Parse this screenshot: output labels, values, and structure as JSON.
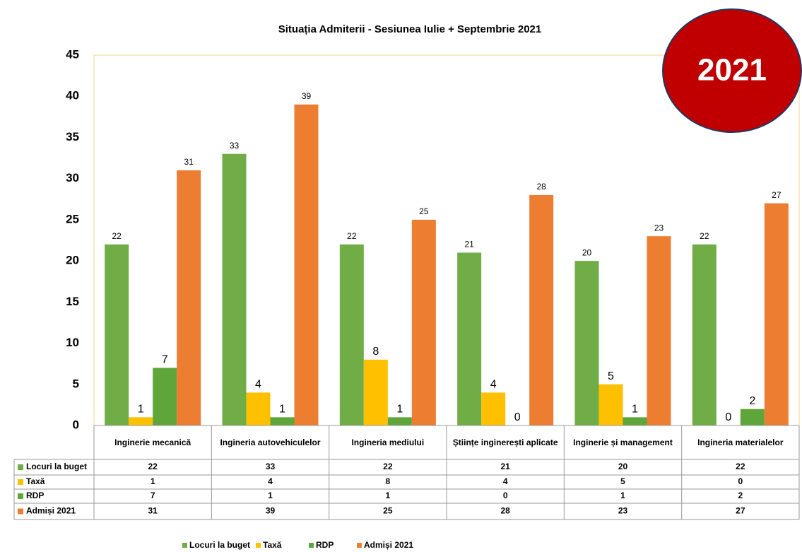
{
  "chart_data": {
    "type": "bar",
    "title": "Situația Admiterii - Sesiunea Iulie + Septembrie 2021",
    "badge": "2021",
    "categories": [
      "Inginerie mecanică",
      "Ingineria autovehiculelor",
      "Ingineria mediului",
      "Științe inginerești aplicate",
      "Inginerie și management",
      "Ingineria materialelor"
    ],
    "series": [
      {
        "name": "Locuri la buget",
        "color": "#70ad47",
        "values": [
          22,
          33,
          22,
          21,
          20,
          22
        ]
      },
      {
        "name": "Taxă",
        "color": "#ffc000",
        "values": [
          1,
          4,
          8,
          4,
          5,
          0
        ]
      },
      {
        "name": "RDP",
        "color": "#5fa63a",
        "values": [
          7,
          1,
          1,
          0,
          1,
          2
        ]
      },
      {
        "name": "Admiși 2021",
        "color": "#ed7d31",
        "values": [
          31,
          39,
          25,
          28,
          23,
          27
        ]
      }
    ],
    "ylim": [
      0,
      45
    ],
    "yticks": [
      0,
      5,
      10,
      15,
      20,
      25,
      30,
      35,
      40,
      45
    ],
    "grid": false
  }
}
